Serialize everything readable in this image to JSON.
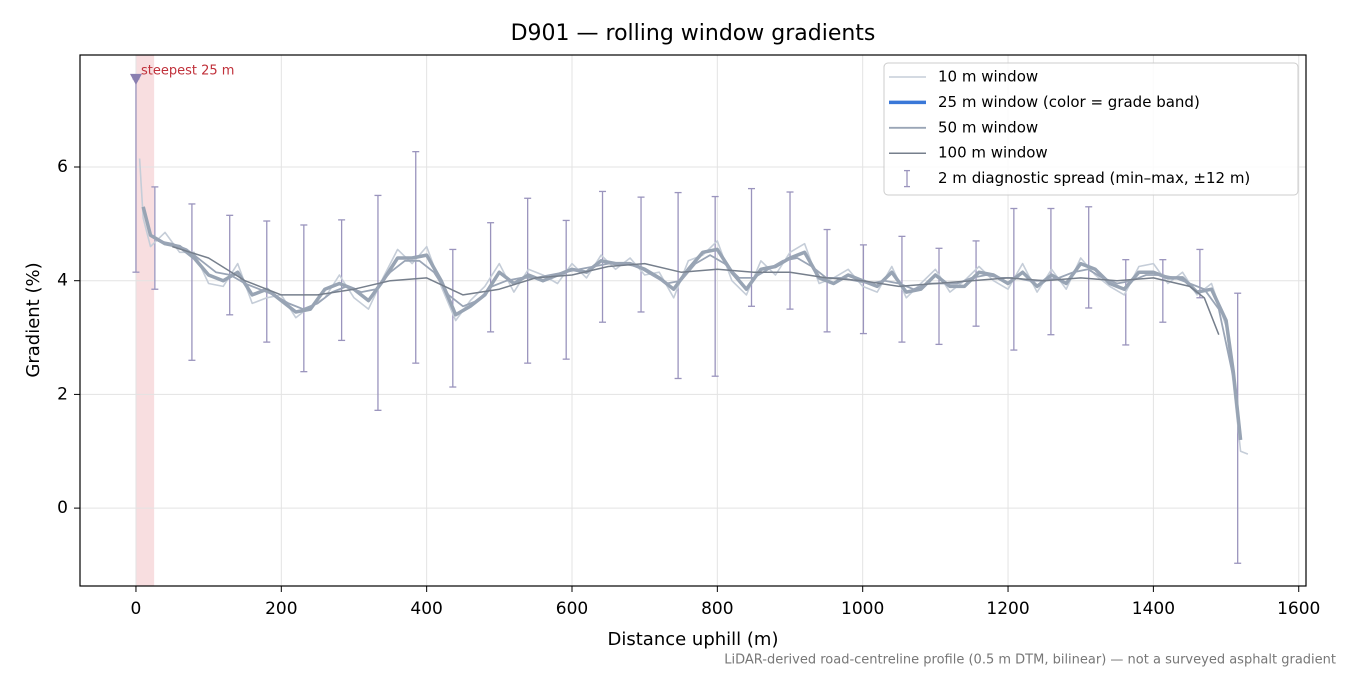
{
  "chart_data": {
    "type": "line",
    "title": "D901 — rolling window gradients",
    "xlabel": "Distance uphill (m)",
    "ylabel": "Gradient (%)",
    "footnote": "LiDAR-derived road-centreline profile (0.5 m DTM, bilinear) — not a surveyed asphalt gradient",
    "xlim": [
      -77,
      1610
    ],
    "ylim": [
      -1.37,
      7.97
    ],
    "xticks": [
      0,
      200,
      400,
      600,
      800,
      1000,
      1200,
      1400,
      1600
    ],
    "yticks": [
      0,
      2,
      4,
      6
    ],
    "grid": true,
    "legend": "upper right",
    "highlight": {
      "label": "steepest 25 m",
      "span": [
        0,
        25
      ],
      "marker": [
        0,
        7.55
      ],
      "color": "#c0303a",
      "span_color": "#f5d0d3",
      "marker_color": "#8a7fb0"
    },
    "series": [
      {
        "name": "10 m window",
        "color": "#c5cdd8",
        "width": 1.6,
        "x": [
          5,
          10,
          20,
          40,
          60,
          80,
          100,
          120,
          140,
          160,
          180,
          200,
          220,
          240,
          260,
          280,
          300,
          320,
          340,
          360,
          380,
          400,
          420,
          440,
          460,
          480,
          500,
          520,
          540,
          560,
          580,
          600,
          620,
          640,
          660,
          680,
          700,
          720,
          740,
          760,
          780,
          800,
          820,
          840,
          860,
          880,
          900,
          920,
          940,
          960,
          980,
          1000,
          1020,
          1040,
          1060,
          1080,
          1100,
          1120,
          1140,
          1160,
          1180,
          1200,
          1220,
          1240,
          1260,
          1280,
          1300,
          1320,
          1340,
          1360,
          1380,
          1400,
          1420,
          1440,
          1460,
          1480,
          1500,
          1510,
          1520,
          1530
        ],
        "values": [
          6.15,
          5.1,
          4.6,
          4.85,
          4.5,
          4.5,
          3.95,
          3.9,
          4.3,
          3.6,
          3.7,
          3.75,
          3.35,
          3.55,
          3.7,
          4.1,
          3.7,
          3.5,
          4.05,
          4.55,
          4.3,
          4.6,
          3.9,
          3.3,
          3.65,
          3.9,
          4.3,
          3.8,
          4.2,
          4.1,
          3.95,
          4.3,
          4.05,
          4.45,
          4.2,
          4.4,
          4.1,
          4.15,
          3.7,
          4.35,
          4.45,
          4.7,
          4.0,
          3.75,
          4.35,
          4.1,
          4.5,
          4.65,
          3.95,
          4.05,
          4.2,
          3.9,
          3.8,
          4.25,
          3.7,
          3.95,
          4.2,
          3.8,
          4.0,
          4.25,
          4.0,
          3.85,
          4.3,
          3.8,
          4.2,
          3.85,
          4.4,
          4.1,
          3.9,
          3.75,
          4.25,
          4.3,
          3.95,
          4.15,
          3.75,
          3.95,
          3.2,
          2.2,
          1.0,
          0.95
        ]
      },
      {
        "name": "25 m window (color = grade band)",
        "color": "#98a4b4",
        "legend_color": "#3a78d8",
        "width": 3.5,
        "x": [
          10,
          20,
          40,
          60,
          80,
          100,
          120,
          140,
          160,
          180,
          200,
          220,
          240,
          260,
          280,
          300,
          320,
          340,
          360,
          380,
          400,
          420,
          440,
          460,
          480,
          500,
          520,
          540,
          560,
          580,
          600,
          620,
          640,
          660,
          680,
          700,
          720,
          740,
          760,
          780,
          800,
          820,
          840,
          860,
          880,
          900,
          920,
          940,
          960,
          980,
          1000,
          1020,
          1040,
          1060,
          1080,
          1100,
          1120,
          1140,
          1160,
          1180,
          1200,
          1220,
          1240,
          1260,
          1280,
          1300,
          1320,
          1340,
          1360,
          1380,
          1400,
          1420,
          1440,
          1460,
          1480,
          1500,
          1510,
          1520
        ],
        "values": [
          5.3,
          4.8,
          4.65,
          4.6,
          4.4,
          4.1,
          4.0,
          4.15,
          3.75,
          3.85,
          3.65,
          3.45,
          3.5,
          3.85,
          3.95,
          3.85,
          3.65,
          4.0,
          4.4,
          4.4,
          4.45,
          4.0,
          3.4,
          3.55,
          3.75,
          4.15,
          3.95,
          4.1,
          4.0,
          4.1,
          4.2,
          4.15,
          4.35,
          4.3,
          4.3,
          4.2,
          4.05,
          3.85,
          4.2,
          4.5,
          4.55,
          4.15,
          3.85,
          4.2,
          4.25,
          4.4,
          4.5,
          4.05,
          3.95,
          4.1,
          4.0,
          3.9,
          4.15,
          3.8,
          3.85,
          4.1,
          3.9,
          3.9,
          4.15,
          4.1,
          3.95,
          4.15,
          3.9,
          4.1,
          3.95,
          4.3,
          4.2,
          3.95,
          3.85,
          4.15,
          4.15,
          4.05,
          4.05,
          3.8,
          3.85,
          3.3,
          2.4,
          1.2
        ]
      },
      {
        "name": "50 m window",
        "color": "#9aa5b6",
        "width": 1.8,
        "x": [
          30,
          50,
          70,
          90,
          110,
          130,
          150,
          170,
          190,
          210,
          230,
          250,
          270,
          290,
          310,
          330,
          350,
          370,
          390,
          410,
          430,
          450,
          470,
          490,
          510,
          530,
          550,
          570,
          590,
          610,
          630,
          650,
          670,
          690,
          710,
          730,
          750,
          770,
          790,
          810,
          830,
          850,
          870,
          890,
          910,
          930,
          950,
          970,
          990,
          1010,
          1030,
          1050,
          1070,
          1090,
          1110,
          1130,
          1150,
          1170,
          1190,
          1210,
          1230,
          1250,
          1270,
          1290,
          1310,
          1330,
          1350,
          1370,
          1390,
          1410,
          1430,
          1450,
          1470,
          1490,
          1510
        ],
        "values": [
          4.7,
          4.65,
          4.55,
          4.35,
          4.15,
          4.1,
          3.95,
          3.85,
          3.75,
          3.6,
          3.5,
          3.6,
          3.8,
          3.9,
          3.8,
          3.85,
          4.15,
          4.35,
          4.35,
          4.15,
          3.75,
          3.55,
          3.65,
          3.9,
          4.0,
          4.05,
          4.05,
          4.1,
          4.15,
          4.2,
          4.25,
          4.3,
          4.3,
          4.25,
          4.1,
          3.95,
          4.0,
          4.3,
          4.45,
          4.3,
          4.05,
          4.05,
          4.2,
          4.35,
          4.4,
          4.25,
          4.05,
          4.05,
          4.0,
          3.95,
          4.0,
          3.95,
          3.85,
          3.95,
          3.95,
          3.95,
          4.05,
          4.1,
          4.05,
          4.05,
          4.0,
          4.0,
          4.05,
          4.15,
          4.2,
          4.05,
          3.95,
          4.0,
          4.1,
          4.1,
          4.05,
          3.95,
          3.85,
          3.5,
          2.3
        ]
      },
      {
        "name": "100 m window",
        "color": "#767f8c",
        "width": 1.5,
        "x": [
          50,
          100,
          150,
          200,
          250,
          300,
          350,
          400,
          450,
          500,
          550,
          600,
          650,
          700,
          750,
          800,
          850,
          900,
          950,
          1000,
          1050,
          1100,
          1150,
          1200,
          1250,
          1300,
          1350,
          1400,
          1450,
          1470,
          1490
        ],
        "values": [
          4.6,
          4.4,
          4.0,
          3.75,
          3.75,
          3.85,
          4.0,
          4.05,
          3.75,
          3.85,
          4.05,
          4.1,
          4.25,
          4.3,
          4.15,
          4.2,
          4.15,
          4.15,
          4.05,
          4.0,
          3.9,
          3.95,
          4.0,
          4.05,
          4.0,
          4.05,
          4.0,
          4.05,
          3.9,
          3.7,
          3.05
        ]
      }
    ],
    "errorbars": {
      "name": "2 m diagnostic spread (min–max, ±12 m)",
      "color": "#9a94bd",
      "x": [
        0,
        26,
        77,
        129,
        180,
        231,
        283,
        333,
        385,
        436,
        488,
        539,
        592,
        642,
        695,
        746,
        797,
        847,
        900,
        951,
        1001,
        1054,
        1105,
        1156,
        1208,
        1259,
        1311,
        1362,
        1413,
        1464,
        1516
      ],
      "low": [
        4.15,
        3.85,
        2.6,
        3.4,
        2.92,
        2.4,
        2.95,
        1.72,
        2.55,
        2.13,
        3.1,
        2.55,
        2.62,
        3.27,
        3.45,
        2.28,
        2.32,
        3.55,
        3.5,
        3.1,
        3.07,
        2.92,
        2.88,
        3.2,
        2.78,
        3.05,
        3.52,
        2.87,
        3.27,
        3.7,
        -0.97
      ],
      "high": [
        7.55,
        5.65,
        5.35,
        5.15,
        5.05,
        4.98,
        5.07,
        5.5,
        6.27,
        4.55,
        5.02,
        5.45,
        5.06,
        5.57,
        5.47,
        5.55,
        5.48,
        5.62,
        5.56,
        4.9,
        4.63,
        4.78,
        4.57,
        4.7,
        5.27,
        5.27,
        5.3,
        4.37,
        4.37,
        4.55,
        3.78
      ]
    }
  }
}
